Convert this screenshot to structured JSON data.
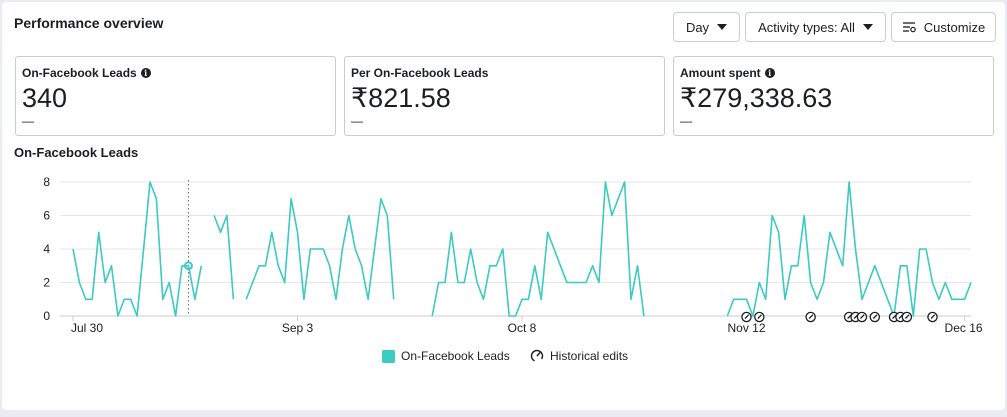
{
  "header": {
    "title": "Performance overview",
    "day_label": "Day",
    "activity_label": "Activity types: All",
    "customize_label": "Customize"
  },
  "metrics": [
    {
      "label": "On-Facebook Leads",
      "value": "340",
      "sub": "—",
      "has_info": true
    },
    {
      "label": "Per On-Facebook Leads",
      "value": "₹821.58",
      "sub": "—",
      "has_info": false
    },
    {
      "label": "Amount spent",
      "value": "₹279,338.63",
      "sub": "—",
      "has_info": true
    }
  ],
  "legend": {
    "series_label": "On-Facebook Leads",
    "edits_label": "Historical edits"
  },
  "colors": {
    "series": "#3ccac2",
    "grid": "#e4e6eb",
    "text": "#1c1e21"
  },
  "chart_data": {
    "type": "line",
    "title": "On-Facebook Leads",
    "x_start": "Jul 30",
    "x_end": "Dec 16",
    "xtick_labels": [
      "Jul 30",
      "Sep 3",
      "Oct 8",
      "Nov 12",
      "Dec 16"
    ],
    "xtick_day_index": [
      0,
      35,
      70,
      105,
      139
    ],
    "yticks": [
      0,
      2,
      4,
      6,
      8
    ],
    "ylim": [
      0,
      8
    ],
    "grid": true,
    "legend_position": "bottom",
    "hover_day_index": 18,
    "series": [
      {
        "name": "On-Facebook Leads",
        "values": [
          4,
          2,
          1,
          1,
          5,
          2,
          3,
          0,
          1,
          1,
          0,
          4,
          8,
          7,
          1,
          2,
          0,
          3,
          3,
          1,
          3,
          null,
          6,
          5,
          6,
          1,
          null,
          1,
          2,
          3,
          3,
          5,
          3,
          2,
          7,
          5,
          1,
          4,
          4,
          4,
          3,
          1,
          4,
          6,
          4,
          3,
          1,
          4,
          7,
          6,
          1,
          null,
          null,
          null,
          null,
          null,
          0,
          2,
          2,
          5,
          2,
          2,
          4,
          2,
          1,
          3,
          3,
          4,
          0,
          0,
          1,
          1,
          3,
          1,
          5,
          4,
          3,
          2,
          2,
          2,
          2,
          3,
          2,
          8,
          6,
          7,
          8,
          1,
          3,
          0,
          null,
          null,
          null,
          null,
          null,
          null,
          null,
          null,
          null,
          null,
          null,
          null,
          0,
          1,
          1,
          1,
          0,
          2,
          1,
          6,
          5,
          1,
          3,
          3,
          6,
          2,
          1,
          2,
          5,
          4,
          3,
          8,
          4,
          1,
          2,
          3,
          2,
          1,
          0,
          3,
          3,
          0,
          4,
          4,
          2,
          1,
          2,
          1,
          1,
          1,
          2
        ]
      }
    ],
    "historical_edit_day_index": [
      105,
      107,
      115,
      121,
      122,
      123,
      125,
      128,
      129,
      130,
      134
    ]
  }
}
